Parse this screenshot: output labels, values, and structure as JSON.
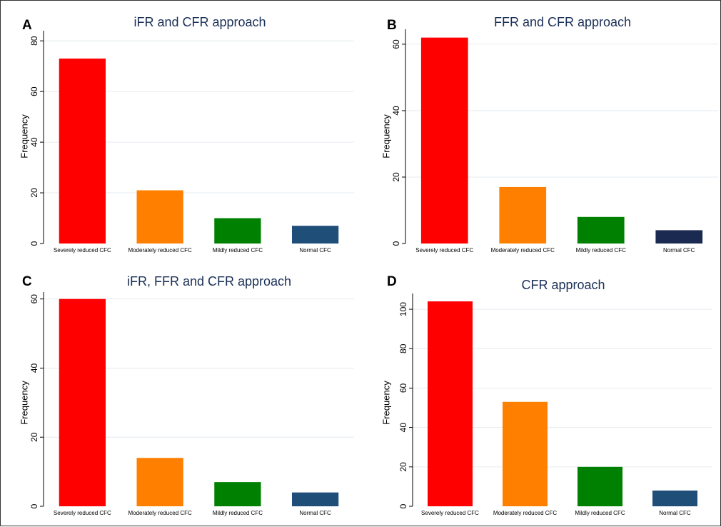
{
  "chart_data": [
    {
      "panel": "A",
      "type": "bar",
      "title": "iFR and CFR approach",
      "ylabel": "Frequency",
      "categories": [
        "Severely reduced CFC",
        "Moderately reduced CFC",
        "Mildly reduced CFC",
        "Normal CFC"
      ],
      "values": [
        73,
        21,
        10,
        7
      ],
      "colors": [
        "#ff0000",
        "#ff8000",
        "#008000",
        "#1f4e79"
      ],
      "ylim": [
        0,
        84
      ],
      "yticks": [
        0,
        20,
        40,
        60,
        80
      ],
      "grid": true
    },
    {
      "panel": "B",
      "type": "bar",
      "title": "FFR and CFR approach",
      "ylabel": "Frequency",
      "categories": [
        "Severely reduced CFC",
        "Moderately reduced CFC",
        "Mildly reduced CFC",
        "Normal CFC"
      ],
      "values": [
        62,
        17,
        8,
        4
      ],
      "colors": [
        "#ff0000",
        "#ff8000",
        "#008000",
        "#1a2a50"
      ],
      "ylim": [
        0,
        64.5
      ],
      "yticks": [
        0,
        20,
        40,
        60
      ],
      "grid": true
    },
    {
      "panel": "C",
      "type": "bar",
      "title": "iFR, FFR and CFR approach",
      "ylabel": "Frequency",
      "categories": [
        "Severely reduced CFC",
        "Moderately reduced CFC",
        "Mildly reduced CFC",
        "Normal CFC"
      ],
      "values": [
        60,
        14,
        7,
        4
      ],
      "colors": [
        "#ff0000",
        "#ff8000",
        "#008000",
        "#1f4e79"
      ],
      "ylim": [
        0,
        62
      ],
      "yticks": [
        0,
        20,
        40,
        60
      ],
      "grid": true
    },
    {
      "panel": "D",
      "type": "bar",
      "title": "CFR approach",
      "ylabel": "Frequency",
      "categories": [
        "Severely reduced CFC",
        "Moderately reduced CFC",
        "Mildly reduced CFC",
        "Normal CFC"
      ],
      "values": [
        104,
        53,
        20,
        8
      ],
      "colors": [
        "#ff0000",
        "#ff8000",
        "#008000",
        "#1f4e79"
      ],
      "ylim": [
        0,
        108
      ],
      "yticks": [
        0,
        20,
        40,
        60,
        80,
        100
      ],
      "grid": true
    }
  ]
}
